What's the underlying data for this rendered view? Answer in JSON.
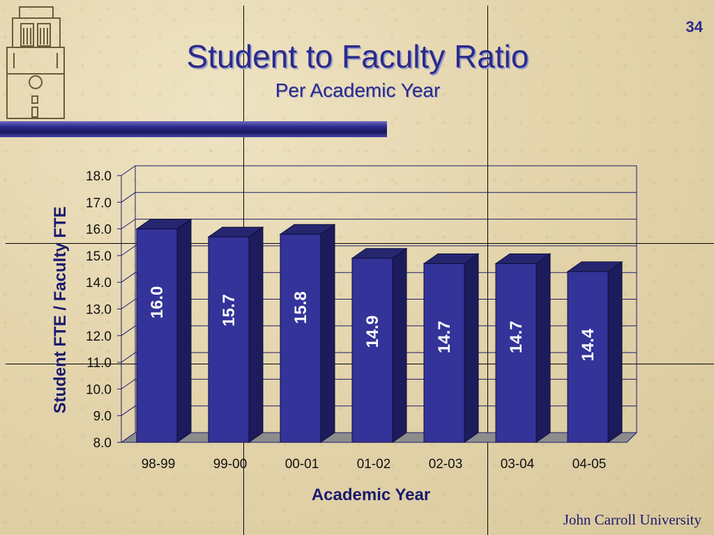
{
  "slide": {
    "page_number": "34",
    "title": "Student to Faculty Ratio",
    "subtitle": "Per Academic Year",
    "footer": "John Carroll University"
  },
  "colors": {
    "bar_front": "#333399",
    "bar_side": "#1c1c5c",
    "bar_top": "#26266f",
    "floor": "#8c8c8c",
    "title": "#2b2a8a"
  },
  "icons": {
    "logo": "tower-logo-icon"
  },
  "chart_data": {
    "type": "bar",
    "style": "3d",
    "categories": [
      "98-99",
      "99-00",
      "00-01",
      "01-02",
      "02-03",
      "03-04",
      "04-05"
    ],
    "values": [
      16.0,
      15.7,
      15.8,
      14.9,
      14.7,
      14.7,
      14.4
    ],
    "data_labels": [
      "16.0",
      "15.7",
      "15.8",
      "14.9",
      "14.7",
      "14.7",
      "14.4"
    ],
    "ylim": [
      8.0,
      18.0
    ],
    "yticks": [
      "8.0",
      "9.0",
      "10.0",
      "11.0",
      "12.0",
      "13.0",
      "14.0",
      "15.0",
      "16.0",
      "17.0",
      "18.0"
    ],
    "xlabel": "Academic Year",
    "ylabel": "Student FTE / Faculty FTE",
    "grid": true,
    "legend": "none"
  }
}
